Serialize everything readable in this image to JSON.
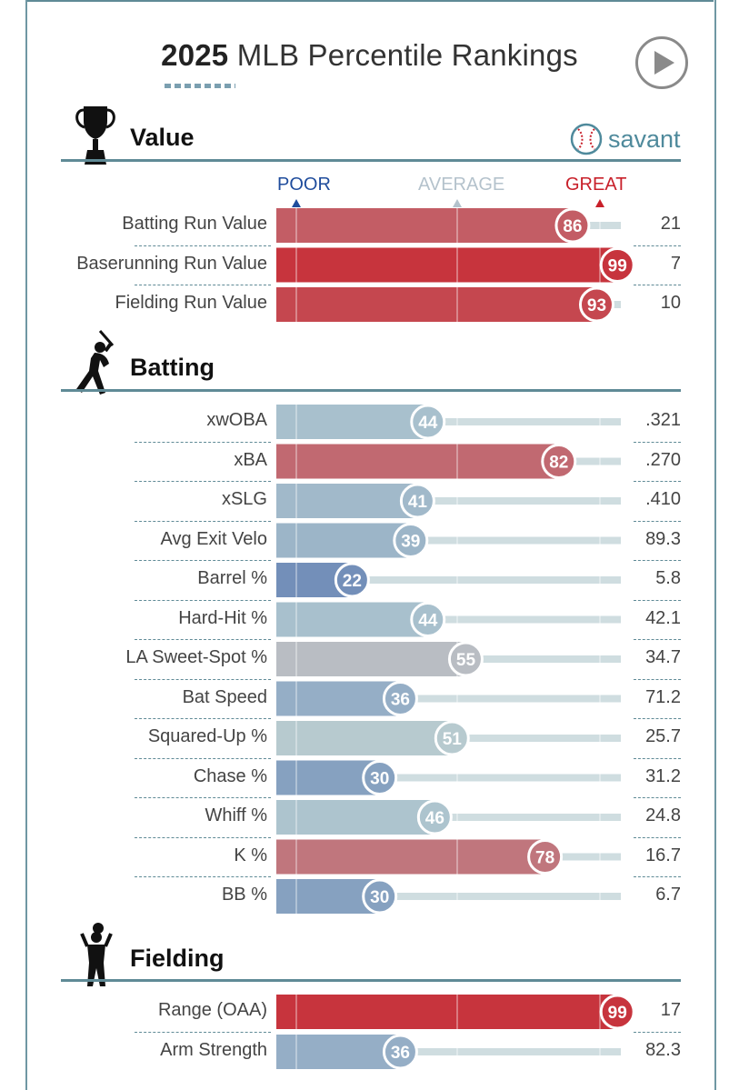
{
  "header": {
    "title_year": "2025",
    "title_rest": " MLB Percentile Rankings",
    "play_icon": "play-icon",
    "brand": "savant",
    "brand_icon": "baseball-icon"
  },
  "scale": {
    "poor": "POOR",
    "average": "AVERAGE",
    "great": "GREAT"
  },
  "colors": {
    "great": "#c7313a",
    "poor": "#3d5fa6",
    "average": "#b7cdd2",
    "track": "#cfdde0",
    "rule": "#5f8a96"
  },
  "sections": [
    {
      "title": "Value",
      "icon": "trophy-icon"
    },
    {
      "title": "Batting",
      "icon": "batter-icon"
    },
    {
      "title": "Fielding",
      "icon": "fielder-icon"
    }
  ],
  "chart_data": {
    "type": "bar",
    "orientation": "horizontal",
    "xlim": [
      0,
      100
    ],
    "groups": [
      {
        "name": "Value",
        "categories": [
          "Batting Run Value",
          "Baserunning Run Value",
          "Fielding Run Value"
        ],
        "percentiles": [
          86,
          99,
          93
        ],
        "values": [
          "21",
          "7",
          "10"
        ]
      },
      {
        "name": "Batting",
        "categories": [
          "xwOBA",
          "xBA",
          "xSLG",
          "Avg Exit Velo",
          "Barrel %",
          "Hard-Hit %",
          "LA Sweet-Spot %",
          "Bat Speed",
          "Squared-Up %",
          "Chase %",
          "Whiff %",
          "K %",
          "BB %"
        ],
        "percentiles": [
          44,
          82,
          41,
          39,
          22,
          44,
          55,
          36,
          51,
          30,
          46,
          78,
          30
        ],
        "values": [
          ".321",
          ".270",
          ".410",
          "89.3",
          "5.8",
          "42.1",
          "34.7",
          "71.2",
          "25.7",
          "31.2",
          "24.8",
          "16.7",
          "6.7"
        ]
      },
      {
        "name": "Fielding",
        "categories": [
          "Range (OAA)",
          "Arm Strength"
        ],
        "percentiles": [
          99,
          36
        ],
        "values": [
          "17",
          "82.3"
        ]
      }
    ]
  }
}
